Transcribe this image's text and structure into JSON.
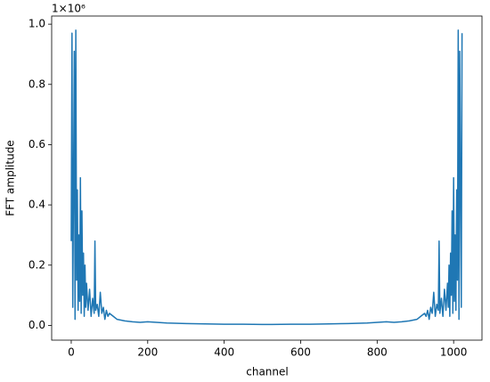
{
  "chart_data": {
    "type": "line",
    "x_label": "channel",
    "y_label": "FFT amplitude",
    "y_offset_label": "1×10⁶",
    "x": [
      0,
      2,
      4,
      6,
      8,
      10,
      12,
      14,
      16,
      18,
      20,
      22,
      24,
      26,
      28,
      30,
      32,
      34,
      36,
      38,
      40,
      44,
      48,
      52,
      56,
      60,
      62,
      64,
      68,
      72,
      76,
      80,
      84,
      88,
      92,
      96,
      100,
      110,
      120,
      140,
      160,
      180,
      200,
      250,
      300,
      350,
      400,
      450,
      500,
      512,
      524,
      574,
      624,
      674,
      724,
      774,
      824,
      844,
      864,
      884,
      904,
      914,
      924,
      928,
      932,
      936,
      940,
      944,
      948,
      952,
      956,
      960,
      962,
      964,
      968,
      972,
      976,
      980,
      984,
      986,
      988,
      990,
      992,
      994,
      996,
      998,
      1000,
      1002,
      1004,
      1006,
      1008,
      1010,
      1012,
      1014,
      1016,
      1018,
      1020,
      1022
    ],
    "series": [
      {
        "color": "#1f77b4",
        "values": [
          0.28,
          0.97,
          0.06,
          0.46,
          0.91,
          0.02,
          0.98,
          0.15,
          0.45,
          0.05,
          0.3,
          0.08,
          0.49,
          0.04,
          0.38,
          0.1,
          0.24,
          0.03,
          0.2,
          0.06,
          0.14,
          0.05,
          0.12,
          0.03,
          0.09,
          0.04,
          0.28,
          0.05,
          0.07,
          0.03,
          0.11,
          0.04,
          0.06,
          0.02,
          0.05,
          0.03,
          0.04,
          0.03,
          0.02,
          0.015,
          0.012,
          0.01,
          0.012,
          0.008,
          0.006,
          0.005,
          0.004,
          0.004,
          0.003,
          0.003,
          0.003,
          0.004,
          0.004,
          0.005,
          0.006,
          0.008,
          0.012,
          0.01,
          0.012,
          0.015,
          0.02,
          0.03,
          0.04,
          0.03,
          0.05,
          0.02,
          0.06,
          0.04,
          0.11,
          0.03,
          0.07,
          0.05,
          0.28,
          0.04,
          0.09,
          0.03,
          0.12,
          0.05,
          0.14,
          0.06,
          0.2,
          0.03,
          0.24,
          0.1,
          0.38,
          0.04,
          0.49,
          0.08,
          0.3,
          0.05,
          0.45,
          0.15,
          0.98,
          0.02,
          0.91,
          0.46,
          0.06,
          0.97
        ]
      }
    ],
    "xlim": [
      -51.15,
      1074.15
    ],
    "xticks": [
      0,
      200,
      400,
      600,
      800,
      1000
    ],
    "ylim": [
      -0.049,
      1.027
    ],
    "yticks": [
      {
        "value": 0,
        "label": "0.0"
      },
      0.2,
      0.4,
      0.6,
      0.8,
      {
        "value": 1,
        "label": "1.0"
      }
    ]
  }
}
